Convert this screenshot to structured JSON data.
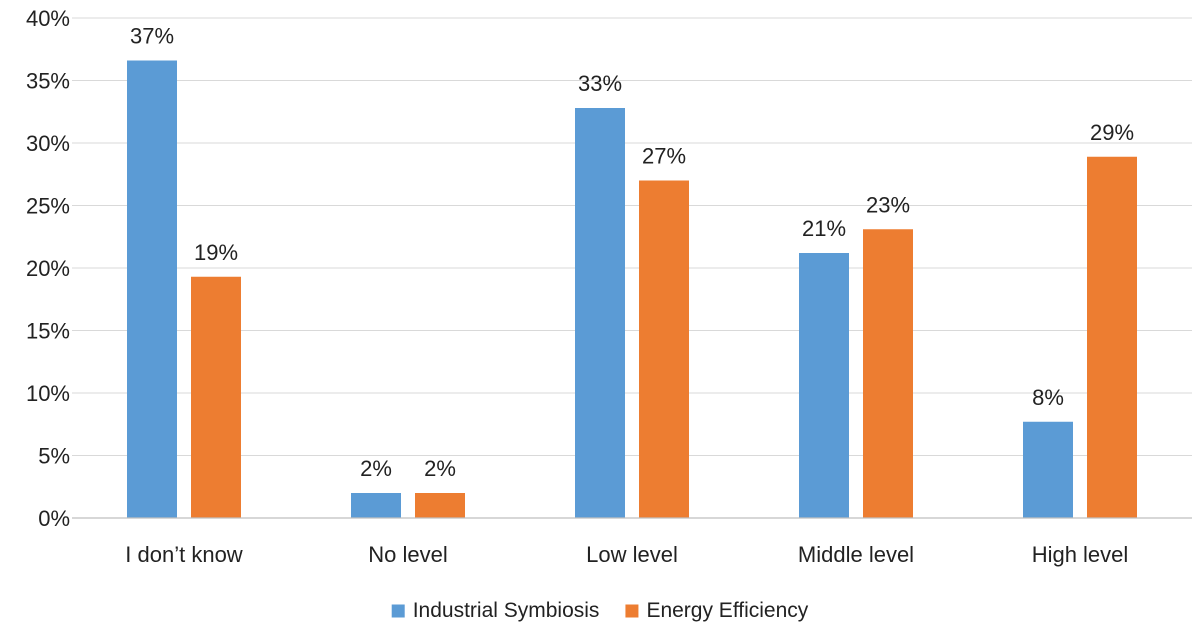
{
  "chart_data": {
    "type": "bar",
    "title": "",
    "xlabel": "",
    "ylabel": "",
    "categories": [
      "I don’t know",
      "No level",
      "Low level",
      "Middle level",
      "High level"
    ],
    "series": [
      {
        "name": "Industrial Symbiosis",
        "color": "#5B9BD5",
        "values": [
          36.6,
          2.0,
          32.8,
          21.2,
          7.7
        ],
        "labels": [
          "37%",
          "2%",
          "33%",
          "21%",
          "8%"
        ]
      },
      {
        "name": "Energy Efficiency",
        "color": "#ED7D31",
        "values": [
          19.3,
          2.0,
          27.0,
          23.1,
          28.9
        ],
        "labels": [
          "19%",
          "2%",
          "27%",
          "23%",
          "29%"
        ]
      }
    ],
    "ylim": [
      0,
      40
    ],
    "yticks": [
      0,
      5,
      10,
      15,
      20,
      25,
      30,
      35,
      40
    ],
    "ytick_labels": [
      "0%",
      "5%",
      "10%",
      "15%",
      "20%",
      "25%",
      "30%",
      "35%",
      "40%"
    ],
    "grid": true,
    "legend": "bottom-center"
  }
}
